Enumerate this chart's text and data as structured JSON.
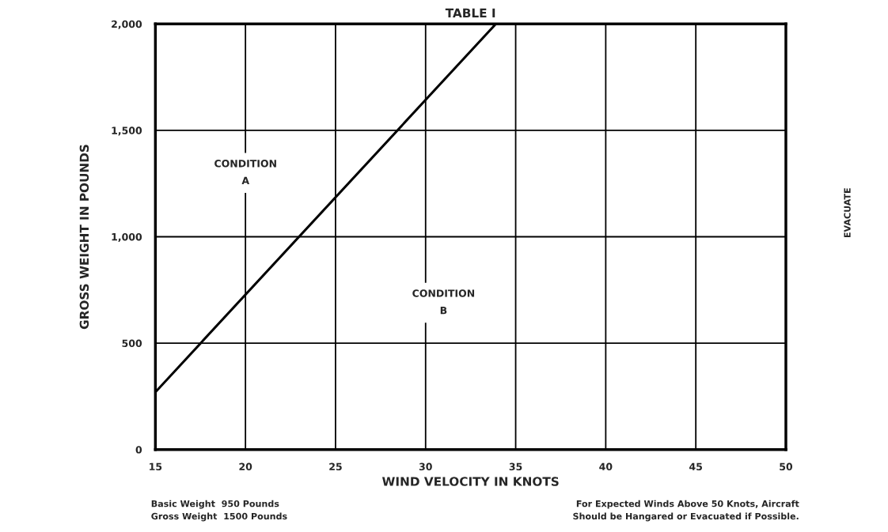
{
  "chart_data": {
    "type": "line",
    "title": "TABLE I",
    "xlabel": "WIND VELOCITY IN KNOTS",
    "ylabel": "GROSS WEIGHT IN POUNDS",
    "series": [
      {
        "x": [
          15,
          33.9
        ],
        "values": [
          270,
          2000
        ],
        "color": "#000000"
      }
    ],
    "xlim": [
      15,
      50
    ],
    "xticks": [
      15,
      20,
      25,
      30,
      35,
      40,
      45,
      50
    ],
    "ylim": [
      0,
      2000
    ],
    "yticks": [
      0,
      {
        "value": 500,
        "label": "500"
      },
      {
        "value": 1000,
        "label": "1,000"
      },
      {
        "value": 1500,
        "label": "1,500"
      },
      {
        "value": 2000,
        "label": "2,000"
      }
    ],
    "grid": true,
    "marker": "none",
    "line_style": "solid",
    "legend": false,
    "annotations": [
      "CONDITION\nA",
      "CONDITION\nB",
      "EVACUATE",
      "Basic Weight  950 Pounds\nGross Weight  1500 Pounds",
      "For Expected Winds Above 50 Knots, Aircraft\nShould be Hangared or Evacuated if Possible."
    ]
  }
}
